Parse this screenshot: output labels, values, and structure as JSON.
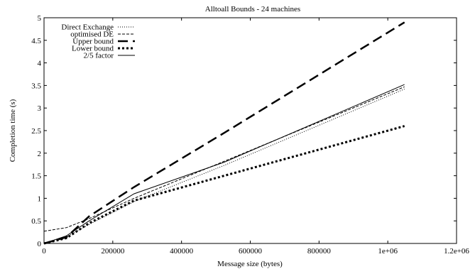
{
  "chart_data": {
    "type": "line",
    "title": "Alltoall Bounds - 24 machines",
    "xlabel": "Message size (bytes)",
    "ylabel": "Completion time (s)",
    "xlim": [
      0,
      1200000
    ],
    "ylim": [
      0,
      5
    ],
    "x_ticks": [
      0,
      200000,
      400000,
      600000,
      800000,
      1000000,
      1200000
    ],
    "x_tick_labels": [
      "0",
      "200000",
      "400000",
      "600000",
      "800000",
      "1e+06",
      "1.2e+06"
    ],
    "y_ticks": [
      0,
      0.5,
      1,
      1.5,
      2,
      2.5,
      3,
      3.5,
      4,
      4.5,
      5
    ],
    "y_tick_labels": [
      "0",
      "0.5",
      "1",
      "1.5",
      "2",
      "2.5",
      "3",
      "3.5",
      "4",
      "4.5",
      "5"
    ],
    "grid": false,
    "legend_position": "top-left",
    "series": [
      {
        "name": "Direct Exchange",
        "style": "dotted-thin",
        "color": "#000000",
        "x": [
          0,
          65536,
          131072,
          262144,
          524288,
          1048576
        ],
        "y": [
          0.0,
          0.15,
          0.42,
          0.93,
          1.73,
          3.42
        ]
      },
      {
        "name": "optimised DE",
        "style": "dashed-thin",
        "color": "#000000",
        "x": [
          0,
          65536,
          131072,
          262144,
          524288,
          1048576
        ],
        "y": [
          0.27,
          0.35,
          0.55,
          1.0,
          1.82,
          3.47
        ]
      },
      {
        "name": "Upper bound",
        "style": "dashed-thick",
        "color": "#000000",
        "x": [
          0,
          65536,
          131072,
          262144,
          524288,
          1048576
        ],
        "y": [
          0.0,
          0.14,
          0.6,
          1.25,
          2.45,
          4.9
        ]
      },
      {
        "name": "Lower bound",
        "style": "dotted-thick",
        "color": "#000000",
        "x": [
          0,
          65536,
          131072,
          262144,
          524288,
          1048576
        ],
        "y": [
          0.0,
          0.12,
          0.45,
          0.95,
          1.5,
          2.6
        ]
      },
      {
        "name": "2/5 factor",
        "style": "solid",
        "color": "#000000",
        "x": [
          0,
          65536,
          131072,
          262144,
          524288,
          1048576
        ],
        "y": [
          0.0,
          0.17,
          0.5,
          1.1,
          1.8,
          3.52
        ]
      }
    ]
  }
}
